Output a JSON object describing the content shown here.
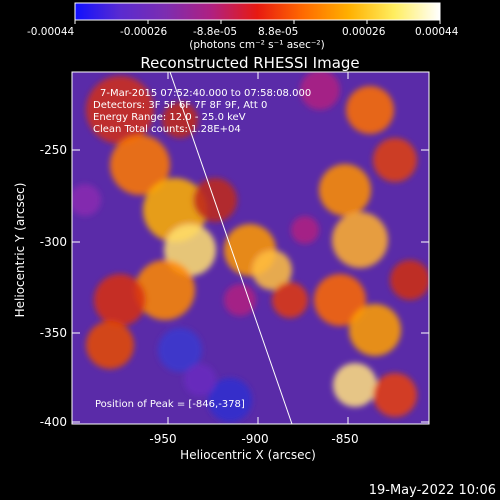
{
  "colorbar": {
    "tick_labels": [
      "-0.00044",
      "-0.00026",
      "-8.8e-05",
      "8.8e-05",
      "0.00026",
      "0.00044"
    ],
    "unit_label": "(photons cm⁻² s⁻¹ asec⁻²)",
    "gradient_colors": [
      "#1010ff",
      "#5a2bd0",
      "#7d2db0",
      "#b02080",
      "#e81a10",
      "#ff6a00",
      "#ffb000",
      "#ffee60",
      "#ffffff"
    ]
  },
  "image": {
    "title": "Reconstructed RHESSI Image",
    "info_lines": [
      "7-Mar-2015 07:52:40.000 to 07:58:08.000",
      "Detectors: 3F 5F 6F 7F 8F 9F, Att 0",
      "Energy Range: 12.0 - 25.0 keV",
      "Clean  Total counts: 1.28E+04"
    ],
    "peak_label": "Position of Peak = [-846,-378]",
    "x_axis": {
      "label": "Heliocentric X (arcsec)",
      "ticks": [
        "-950",
        "-900",
        "-850"
      ]
    },
    "y_axis": {
      "label": "Heliocentric Y (arcsec)",
      "ticks": [
        "-250",
        "-300",
        "-350",
        "-400"
      ]
    }
  },
  "footer": {
    "date_time": "19-May-2022 10:06"
  }
}
